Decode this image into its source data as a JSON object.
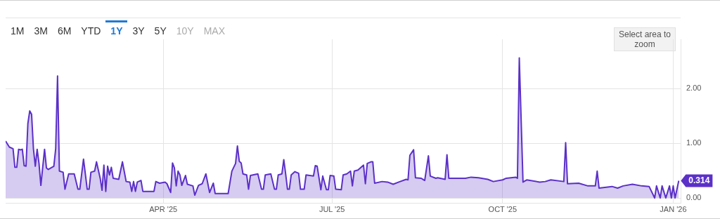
{
  "chart_data": {
    "type": "area",
    "x": [
      "2025-01-06",
      "2025-01-08",
      "2025-01-10",
      "2025-01-11",
      "2025-01-12",
      "2025-01-13",
      "2025-01-14",
      "2025-01-15",
      "2025-01-16",
      "2025-01-17",
      "2025-01-18",
      "2025-01-19",
      "2025-01-20",
      "2025-01-21",
      "2025-01-22",
      "2025-01-23",
      "2025-01-24",
      "2025-01-25",
      "2025-01-27",
      "2025-01-28",
      "2025-01-29",
      "2025-02-01",
      "2025-02-02",
      "2025-02-03",
      "2025-02-04",
      "2025-02-06",
      "2025-02-07",
      "2025-02-09",
      "2025-02-12",
      "2025-02-14",
      "2025-02-15",
      "2025-02-17",
      "2025-02-19",
      "2025-02-20",
      "2025-02-21",
      "2025-02-23",
      "2025-02-24",
      "2025-02-26",
      "2025-02-27",
      "2025-02-28",
      "2025-03-01",
      "2025-03-02",
      "2025-03-03",
      "2025-03-04",
      "2025-03-05",
      "2025-03-08",
      "2025-03-10",
      "2025-03-12",
      "2025-03-14",
      "2025-03-15",
      "2025-03-16",
      "2025-03-17",
      "2025-03-18",
      "2025-03-20",
      "2025-03-21",
      "2025-03-27",
      "2025-03-28",
      "2025-03-30",
      "2025-04-02",
      "2025-04-03",
      "2025-04-05",
      "2025-04-06",
      "2025-04-07",
      "2025-04-08",
      "2025-04-09",
      "2025-04-10",
      "2025-04-11",
      "2025-04-13",
      "2025-04-14",
      "2025-04-17",
      "2025-04-18",
      "2025-04-20",
      "2025-04-22",
      "2025-04-24",
      "2025-04-26",
      "2025-04-28",
      "2025-04-29",
      "2025-05-06",
      "2025-05-08",
      "2025-05-10",
      "2025-05-11",
      "2025-05-12",
      "2025-05-13",
      "2025-05-14",
      "2025-05-16",
      "2025-05-17",
      "2025-05-18",
      "2025-05-22",
      "2025-05-24",
      "2025-05-25",
      "2025-05-26",
      "2025-05-29",
      "2025-05-31",
      "2025-06-01",
      "2025-06-02",
      "2025-06-04",
      "2025-06-05",
      "2025-06-06",
      "2025-06-07",
      "2025-06-08",
      "2025-06-09",
      "2025-06-11",
      "2025-06-13",
      "2025-06-14",
      "2025-06-16",
      "2025-06-17",
      "2025-06-21",
      "2025-06-22",
      "2025-06-23",
      "2025-06-25",
      "2025-06-26",
      "2025-06-28",
      "2025-06-29",
      "2025-06-30",
      "2025-07-02",
      "2025-07-03",
      "2025-07-06",
      "2025-07-07",
      "2025-07-09",
      "2025-07-11",
      "2025-07-12",
      "2025-07-13",
      "2025-07-15",
      "2025-07-18",
      "2025-07-19",
      "2025-07-20",
      "2025-07-22",
      "2025-07-23",
      "2025-07-24",
      "2025-07-28",
      "2025-07-31",
      "2025-08-03",
      "2025-08-06",
      "2025-08-10",
      "2025-08-11",
      "2025-08-12",
      "2025-08-14",
      "2025-08-15",
      "2025-08-18",
      "2025-08-20",
      "2025-08-22",
      "2025-08-23",
      "2025-08-26",
      "2025-08-27",
      "2025-08-31",
      "2025-09-01",
      "2025-09-02",
      "2025-09-11",
      "2025-09-14",
      "2025-09-18",
      "2025-09-23",
      "2025-09-26",
      "2025-10-01",
      "2025-10-03",
      "2025-10-08",
      "2025-10-09",
      "2025-10-10",
      "2025-10-12",
      "2025-10-14",
      "2025-10-21",
      "2025-10-24",
      "2025-10-27",
      "2025-11-03",
      "2025-11-04",
      "2025-11-05",
      "2025-11-11",
      "2025-11-16",
      "2025-11-20",
      "2025-11-21",
      "2025-11-22",
      "2025-11-29",
      "2025-12-02",
      "2025-12-05",
      "2025-12-10",
      "2025-12-15",
      "2025-12-19",
      "2025-12-22",
      "2025-12-23",
      "2025-12-25",
      "2025-12-26",
      "2025-12-28",
      "2025-12-30",
      "2025-12-31",
      "2026-01-01",
      "2026-01-02",
      "2026-01-04"
    ],
    "series": [
      {
        "color": "#5b30c8",
        "values": [
          1.04,
          0.93,
          0.9,
          0.56,
          0.56,
          0.89,
          0.88,
          0.89,
          0.59,
          0.58,
          1.36,
          1.59,
          1.53,
          0.9,
          0.58,
          0.89,
          0.63,
          0.23,
          0.89,
          0.55,
          0.52,
          0.58,
          0.9,
          2.23,
          0.49,
          0.47,
          0.16,
          0.44,
          0.44,
          0.16,
          0.16,
          0.71,
          0.16,
          0.16,
          0.47,
          0.49,
          0.66,
          0.36,
          0.14,
          0.6,
          0.12,
          0.58,
          0.42,
          0.56,
          0.36,
          0.34,
          0.66,
          0.3,
          0.29,
          0.12,
          0.3,
          0.12,
          0.29,
          0.32,
          0.12,
          0.12,
          0.3,
          0.27,
          0.29,
          0.26,
          0.1,
          0.64,
          0.55,
          0.22,
          0.49,
          0.42,
          0.23,
          0.41,
          0.25,
          0.22,
          0.05,
          0.23,
          0.26,
          0.44,
          0.1,
          0.27,
          0.08,
          0.08,
          0.49,
          0.63,
          0.95,
          0.67,
          0.64,
          0.44,
          0.42,
          0.16,
          0.41,
          0.44,
          0.16,
          0.16,
          0.42,
          0.44,
          0.16,
          0.16,
          0.42,
          0.44,
          0.7,
          0.44,
          0.16,
          0.16,
          0.42,
          0.48,
          0.45,
          0.16,
          0.16,
          0.42,
          0.4,
          0.59,
          0.58,
          0.15,
          0.4,
          0.15,
          0.15,
          0.41,
          0.4,
          0.16,
          0.15,
          0.42,
          0.44,
          0.49,
          0.22,
          0.49,
          0.51,
          0.6,
          0.26,
          0.63,
          0.66,
          0.66,
          0.27,
          0.3,
          0.29,
          0.25,
          0.29,
          0.34,
          0.33,
          0.78,
          0.88,
          0.37,
          0.36,
          0.32,
          0.77,
          0.4,
          0.36,
          0.37,
          0.34,
          0.79,
          0.36,
          0.36,
          0.38,
          0.37,
          0.34,
          0.3,
          0.33,
          0.36,
          0.38,
          0.36,
          2.56,
          0.29,
          0.33,
          0.29,
          0.3,
          0.33,
          0.3,
          1.01,
          0.26,
          0.27,
          0.22,
          0.22,
          0.49,
          0.18,
          0.21,
          0.18,
          0.22,
          0.25,
          0.22,
          0.21,
          0,
          0.22,
          0,
          0.22,
          0,
          0.22,
          0,
          0.22,
          0,
          0.314
        ]
      }
    ],
    "xlim": [
      "2025-01-06",
      "2026-01-05"
    ],
    "xticks": [
      {
        "value": "2025-04-01",
        "label": "APR '25"
      },
      {
        "value": "2025-07-01",
        "label": "JUL '25"
      },
      {
        "value": "2025-10-01",
        "label": "OCT '25"
      },
      {
        "value": "2026-01-01",
        "label": "JAN '26"
      }
    ],
    "ylim": [
      -0.1,
      2.9
    ],
    "yticks": [
      {
        "value": 0,
        "label": "0.00"
      },
      {
        "value": 1,
        "label": "1.00"
      },
      {
        "value": 2,
        "label": "2.00"
      }
    ],
    "grid": true,
    "legend": false,
    "marker": "none",
    "line_style": "solid",
    "annotations": [
      "1M",
      "3M",
      "6M",
      "YTD",
      "1Y",
      "3Y",
      "5Y",
      "10Y",
      "MAX",
      "Select area to zoom",
      {
        "text": "0.314",
        "x": "2026-01-04",
        "y": 0.314
      }
    ]
  }
}
